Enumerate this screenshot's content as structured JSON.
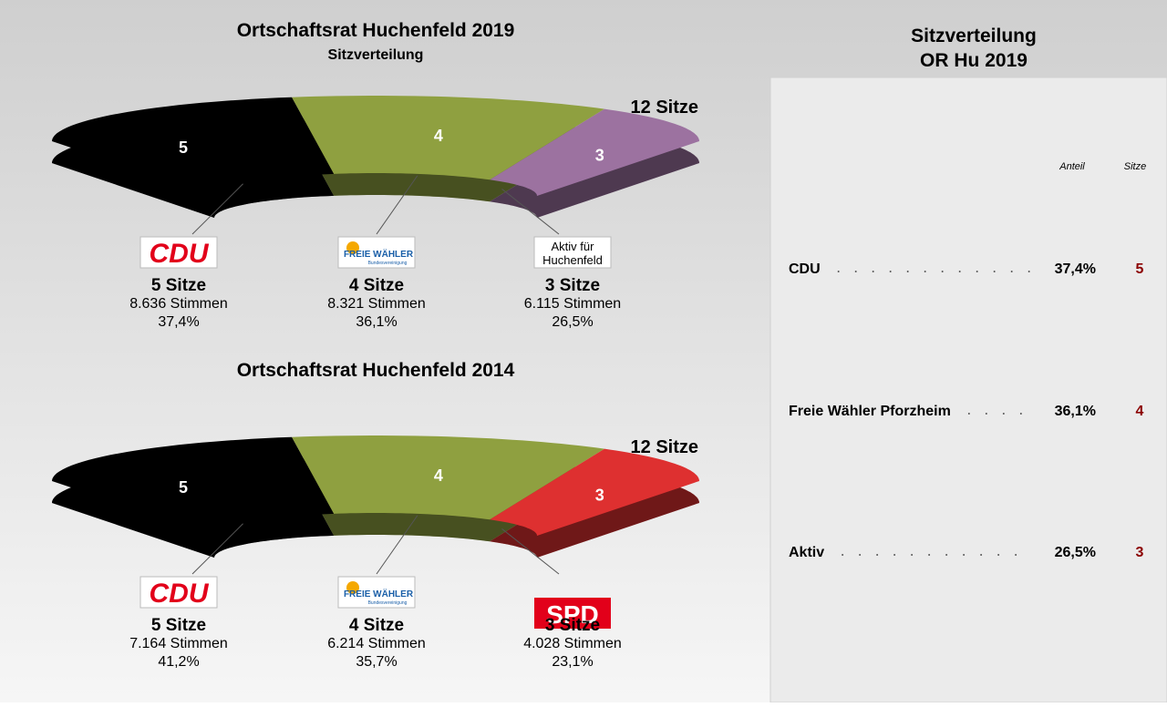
{
  "chart_data": [
    {
      "type": "seat-arc",
      "title": "Ortschaftsrat Huchenfeld 2019",
      "subtitle": "Sitzverteilung",
      "total_label": "12 Sitze",
      "categories": [
        "CDU",
        "Freie Wähler",
        "Aktiv für Huchenfeld"
      ],
      "logos": [
        [
          "CDU"
        ],
        [
          "FREIE WÄHLER",
          "Bundesvereinigung"
        ],
        [
          "Aktiv für",
          "Huchenfeld"
        ]
      ],
      "logo_styles": [
        "cdu",
        "fw",
        "aktiv"
      ],
      "values": [
        5,
        4,
        3
      ],
      "value_labels": [
        "5 Sitze",
        "4 Sitze",
        "3 Sitze"
      ],
      "colors": [
        "#000000",
        "#8fa040",
        "#9c72a0"
      ],
      "votes": [
        8636,
        8321,
        6115
      ],
      "votes_labels": [
        "8.636 Stimmen",
        "8.321 Stimmen",
        "6.115 Stimmen"
      ],
      "shares": [
        37.4,
        36.1,
        26.5
      ],
      "share_labels": [
        "37,4%",
        "36,1%",
        "26,5%"
      ]
    },
    {
      "type": "seat-arc",
      "title": "Ortschaftsrat Huchenfeld 2014",
      "total_label": "12 Sitze",
      "categories": [
        "CDU",
        "Freie Wähler",
        "SPD"
      ],
      "logos": [
        [
          "CDU"
        ],
        [
          "FREIE WÄHLER",
          "Bundesvereinigung"
        ],
        [
          "SPD"
        ]
      ],
      "logo_styles": [
        "cdu",
        "fw",
        "spd"
      ],
      "values": [
        5,
        4,
        3
      ],
      "value_labels": [
        "5 Sitze",
        "4 Sitze",
        "3 Sitze"
      ],
      "colors": [
        "#000000",
        "#8fa040",
        "#de3030"
      ],
      "votes": [
        7164,
        6214,
        4028
      ],
      "votes_labels": [
        "7.164 Stimmen",
        "6.214 Stimmen",
        "4.028 Stimmen"
      ],
      "shares": [
        41.2,
        35.7,
        23.1
      ],
      "share_labels": [
        "41,2%",
        "35,7%",
        "23,1%"
      ]
    }
  ],
  "sidebar": {
    "title": [
      "Sitzverteilung",
      "OR Hu 2019"
    ],
    "headers": [
      "Anteil",
      "Sitze"
    ],
    "rows": [
      [
        "CDU",
        "37,4%",
        5
      ],
      [
        "Freie Wähler Pforzheim",
        "36,1%",
        4
      ],
      [
        "Aktiv",
        "26,5%",
        3
      ]
    ]
  }
}
